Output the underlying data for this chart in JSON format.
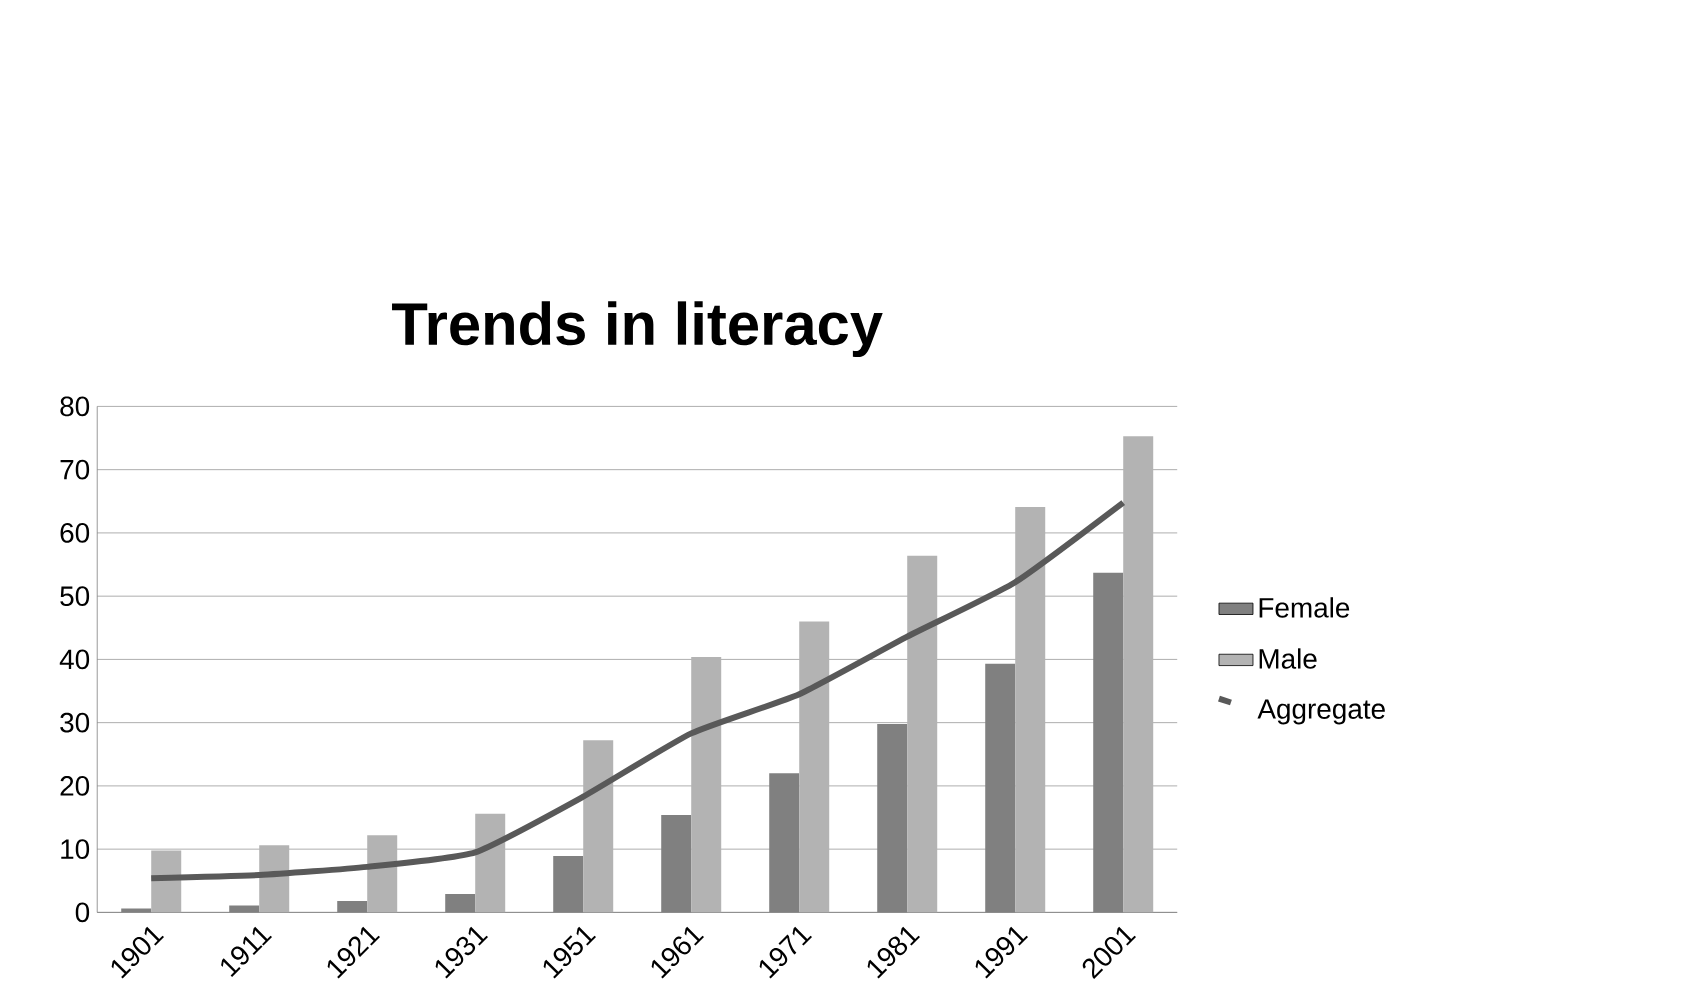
{
  "chart_data": {
    "type": "bar",
    "title": "Trends in literacy",
    "categories": [
      "1901",
      "1911",
      "1921",
      "1931",
      "1951",
      "1961",
      "1971",
      "1981",
      "1991",
      "2001"
    ],
    "series": [
      {
        "name": "Female",
        "color": "#808080",
        "values": [
          0.6,
          1.1,
          1.8,
          2.9,
          8.9,
          15.4,
          22.0,
          29.8,
          39.3,
          53.7
        ]
      },
      {
        "name": "Male",
        "color": "#b3b3b3",
        "values": [
          9.8,
          10.6,
          12.2,
          15.6,
          27.2,
          40.4,
          46.0,
          56.4,
          64.1,
          75.3
        ]
      },
      {
        "name": "Aggregate",
        "type": "line",
        "color": "#595959",
        "values": [
          5.4,
          5.9,
          7.2,
          9.5,
          18.3,
          28.3,
          34.5,
          43.6,
          52.2,
          64.8
        ]
      }
    ],
    "ylim": [
      0,
      80
    ],
    "yticks": [
      0,
      10,
      20,
      30,
      40,
      50,
      60,
      70,
      80
    ],
    "grid": "y",
    "legend": "right",
    "marker": "none"
  }
}
